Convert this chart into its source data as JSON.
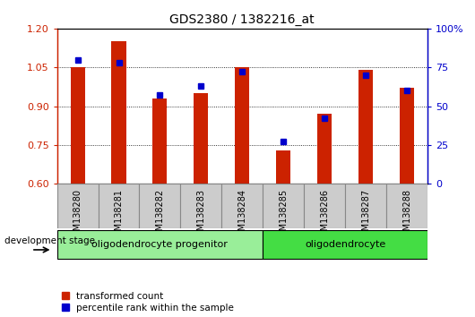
{
  "title": "GDS2380 / 1382216_at",
  "samples": [
    "GSM138280",
    "GSM138281",
    "GSM138282",
    "GSM138283",
    "GSM138284",
    "GSM138285",
    "GSM138286",
    "GSM138287",
    "GSM138288"
  ],
  "red_values": [
    1.05,
    1.15,
    0.93,
    0.95,
    1.05,
    0.73,
    0.87,
    1.04,
    0.97
  ],
  "blue_values": [
    80,
    78,
    57,
    63,
    72,
    27,
    42,
    70,
    60
  ],
  "ylim_left": [
    0.6,
    1.2
  ],
  "ylim_right": [
    0,
    100
  ],
  "yticks_left": [
    0.6,
    0.75,
    0.9,
    1.05,
    1.2
  ],
  "yticks_right": [
    0,
    25,
    50,
    75,
    100
  ],
  "ytick_labels_right": [
    "0",
    "25",
    "50",
    "75",
    "100%"
  ],
  "red_color": "#cc2200",
  "blue_color": "#0000cc",
  "bar_width": 0.35,
  "groups": [
    {
      "label": "oligodendrocyte progenitor",
      "start": 0,
      "end": 4,
      "color": "#99ee99"
    },
    {
      "label": "oligodendrocyte",
      "start": 5,
      "end": 8,
      "color": "#44dd44"
    }
  ],
  "legend_red": "transformed count",
  "legend_blue": "percentile rank within the sample",
  "dev_stage_label": "development stage",
  "base_value": 0.6,
  "grey_cell_color": "#cccccc",
  "cell_edge_color": "#888888"
}
